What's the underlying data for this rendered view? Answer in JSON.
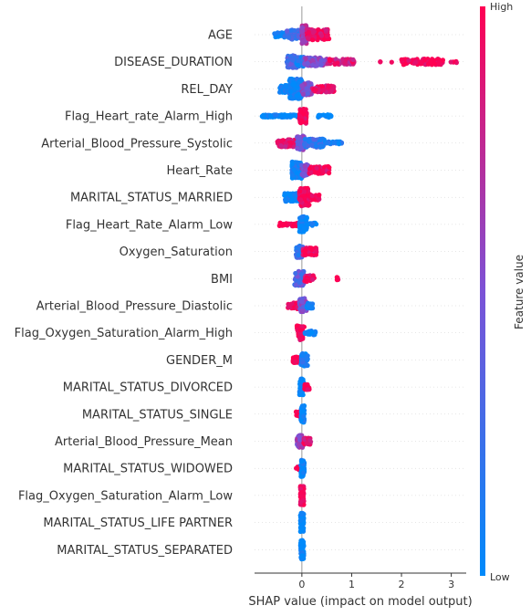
{
  "chart_data": {
    "type": "scatter",
    "title": "",
    "xlabel": "SHAP value (impact on model output)",
    "xlim": [
      -0.95,
      3.3
    ],
    "xticks": [
      0,
      1,
      2,
      3
    ],
    "colorbar": {
      "label": "Feature value",
      "high_label": "High",
      "low_label": "Low",
      "low_color": "#008afb",
      "mid_color": "#7c52d6",
      "high_color": "#ff0052"
    },
    "zero_line_color": "#999999",
    "features": [
      {
        "name": "AGE",
        "segments": [
          {
            "from": -0.55,
            "to": -0.3,
            "amp": 0.25,
            "val": 0.05,
            "n": 40
          },
          {
            "from": -0.3,
            "to": 0.0,
            "amp": 0.45,
            "val": 0.25,
            "n": 70
          },
          {
            "from": 0.0,
            "to": 0.1,
            "amp": 0.9,
            "val": 0.65,
            "n": 80
          },
          {
            "from": 0.1,
            "to": 0.55,
            "amp": 0.5,
            "val": 0.95,
            "n": 110
          }
        ]
      },
      {
        "name": "DISEASE_DURATION",
        "segments": [
          {
            "from": -0.3,
            "to": -0.1,
            "amp": 0.6,
            "val": 0.3,
            "n": 70
          },
          {
            "from": -0.1,
            "to": 0.05,
            "amp": 0.45,
            "val": 0.15,
            "n": 60
          },
          {
            "from": 0.05,
            "to": 0.5,
            "amp": 0.4,
            "val": 0.55,
            "n": 90
          },
          {
            "from": 0.5,
            "to": 1.05,
            "amp": 0.25,
            "val": 0.85,
            "n": 45
          },
          {
            "from": 1.55,
            "to": 1.6,
            "amp": 0.05,
            "val": 1.0,
            "n": 2
          },
          {
            "from": 1.8,
            "to": 1.83,
            "amp": 0.05,
            "val": 1.0,
            "n": 1
          },
          {
            "from": 2.0,
            "to": 2.85,
            "amp": 0.28,
            "val": 1.0,
            "n": 90
          },
          {
            "from": 2.9,
            "to": 3.15,
            "amp": 0.1,
            "val": 1.0,
            "n": 5
          }
        ]
      },
      {
        "name": "REL_DAY",
        "segments": [
          {
            "from": -0.45,
            "to": -0.25,
            "amp": 0.35,
            "val": 0.0,
            "n": 40
          },
          {
            "from": -0.25,
            "to": 0.0,
            "amp": 0.95,
            "val": 0.05,
            "n": 130
          },
          {
            "from": 0.0,
            "to": 0.2,
            "amp": 0.6,
            "val": 0.5,
            "n": 70
          },
          {
            "from": 0.2,
            "to": 0.65,
            "amp": 0.3,
            "val": 0.9,
            "n": 70
          }
        ]
      },
      {
        "name": "Flag_Heart_rate_Alarm_High",
        "segments": [
          {
            "from": -0.8,
            "to": -0.05,
            "amp": 0.12,
            "val": 0.0,
            "n": 90
          },
          {
            "from": -0.05,
            "to": 0.1,
            "amp": 0.7,
            "val": 1.0,
            "n": 60
          },
          {
            "from": 0.3,
            "to": 0.6,
            "amp": 0.12,
            "val": 0.0,
            "n": 25
          }
        ]
      },
      {
        "name": "Arterial_Blood_Pressure_Systolic",
        "segments": [
          {
            "from": -0.5,
            "to": -0.1,
            "amp": 0.35,
            "val": 0.9,
            "n": 70
          },
          {
            "from": -0.1,
            "to": 0.05,
            "amp": 0.7,
            "val": 0.5,
            "n": 60
          },
          {
            "from": 0.05,
            "to": 0.45,
            "amp": 0.4,
            "val": 0.2,
            "n": 80
          },
          {
            "from": 0.45,
            "to": 0.8,
            "amp": 0.15,
            "val": 0.05,
            "n": 25
          }
        ]
      },
      {
        "name": "Heart_Rate",
        "segments": [
          {
            "from": -0.2,
            "to": 0.0,
            "amp": 0.8,
            "val": 0.05,
            "n": 80
          },
          {
            "from": 0.0,
            "to": 0.15,
            "amp": 0.55,
            "val": 0.5,
            "n": 50
          },
          {
            "from": 0.15,
            "to": 0.55,
            "amp": 0.35,
            "val": 0.95,
            "n": 80
          }
        ]
      },
      {
        "name": "MARITAL_STATUS_MARRIED",
        "segments": [
          {
            "from": -0.35,
            "to": -0.05,
            "amp": 0.4,
            "val": 0.0,
            "n": 60
          },
          {
            "from": -0.05,
            "to": 0.15,
            "amp": 0.9,
            "val": 1.0,
            "n": 90
          },
          {
            "from": 0.15,
            "to": 0.35,
            "amp": 0.3,
            "val": 1.0,
            "n": 30
          }
        ]
      },
      {
        "name": "Flag_Heart_Rate_Alarm_Low",
        "segments": [
          {
            "from": -0.45,
            "to": -0.05,
            "amp": 0.15,
            "val": 1.0,
            "n": 40
          },
          {
            "from": -0.05,
            "to": 0.1,
            "amp": 0.75,
            "val": 0.0,
            "n": 70
          },
          {
            "from": 0.1,
            "to": 0.3,
            "amp": 0.15,
            "val": 0.0,
            "n": 15
          }
        ]
      },
      {
        "name": "Oxygen_Saturation",
        "segments": [
          {
            "from": -0.12,
            "to": 0.02,
            "amp": 0.6,
            "val": 0.2,
            "n": 60
          },
          {
            "from": 0.02,
            "to": 0.3,
            "amp": 0.35,
            "val": 0.95,
            "n": 60
          }
        ]
      },
      {
        "name": "BMI",
        "segments": [
          {
            "from": -0.15,
            "to": 0.05,
            "amp": 0.7,
            "val": 0.35,
            "n": 70
          },
          {
            "from": 0.05,
            "to": 0.25,
            "amp": 0.3,
            "val": 0.9,
            "n": 35
          },
          {
            "from": 0.7,
            "to": 0.76,
            "amp": 0.15,
            "val": 1.0,
            "n": 4
          }
        ]
      },
      {
        "name": "Arterial_Blood_Pressure_Diastolic",
        "segments": [
          {
            "from": -0.3,
            "to": -0.05,
            "amp": 0.3,
            "val": 1.0,
            "n": 40
          },
          {
            "from": -0.05,
            "to": 0.1,
            "amp": 0.7,
            "val": 0.5,
            "n": 60
          },
          {
            "from": 0.1,
            "to": 0.22,
            "amp": 0.25,
            "val": 0.0,
            "n": 20
          }
        ]
      },
      {
        "name": "Flag_Oxygen_Saturation_Alarm_High",
        "segments": [
          {
            "from": -0.1,
            "to": 0.05,
            "amp": 0.7,
            "val": 1.0,
            "n": 60
          },
          {
            "from": 0.05,
            "to": 0.28,
            "amp": 0.2,
            "val": 0.0,
            "n": 25
          }
        ]
      },
      {
        "name": "GENDER_M",
        "segments": [
          {
            "from": -0.18,
            "to": -0.02,
            "amp": 0.3,
            "val": 1.0,
            "n": 30
          },
          {
            "from": -0.02,
            "to": 0.12,
            "amp": 0.6,
            "val": 0.1,
            "n": 50
          }
        ]
      },
      {
        "name": "MARITAL_STATUS_DIVORCED",
        "segments": [
          {
            "from": -0.05,
            "to": 0.04,
            "amp": 0.8,
            "val": 0.0,
            "n": 60
          },
          {
            "from": 0.04,
            "to": 0.15,
            "amp": 0.25,
            "val": 1.0,
            "n": 20
          }
        ]
      },
      {
        "name": "MARITAL_STATUS_SINGLE",
        "segments": [
          {
            "from": -0.12,
            "to": -0.02,
            "amp": 0.25,
            "val": 1.0,
            "n": 15
          },
          {
            "from": -0.02,
            "to": 0.05,
            "amp": 0.8,
            "val": 0.0,
            "n": 60
          }
        ]
      },
      {
        "name": "Arterial_Blood_Pressure_Mean",
        "segments": [
          {
            "from": -0.1,
            "to": 0.03,
            "amp": 0.6,
            "val": 0.6,
            "n": 50
          },
          {
            "from": 0.03,
            "to": 0.18,
            "amp": 0.3,
            "val": 0.9,
            "n": 30
          }
        ]
      },
      {
        "name": "MARITAL_STATUS_WIDOWED",
        "segments": [
          {
            "from": -0.12,
            "to": -0.02,
            "amp": 0.2,
            "val": 1.0,
            "n": 12
          },
          {
            "from": -0.02,
            "to": 0.05,
            "amp": 0.8,
            "val": 0.0,
            "n": 60
          }
        ]
      },
      {
        "name": "Flag_Oxygen_Saturation_Alarm_Low",
        "segments": [
          {
            "from": -0.03,
            "to": 0.04,
            "amp": 0.9,
            "val": 1.0,
            "n": 60
          }
        ]
      },
      {
        "name": "MARITAL_STATUS_LIFE PARTNER",
        "segments": [
          {
            "from": -0.03,
            "to": 0.04,
            "amp": 0.9,
            "val": 0.0,
            "n": 60
          }
        ]
      },
      {
        "name": "MARITAL_STATUS_SEPARATED",
        "segments": [
          {
            "from": -0.03,
            "to": 0.04,
            "amp": 0.9,
            "val": 0.0,
            "n": 60
          }
        ]
      }
    ]
  }
}
